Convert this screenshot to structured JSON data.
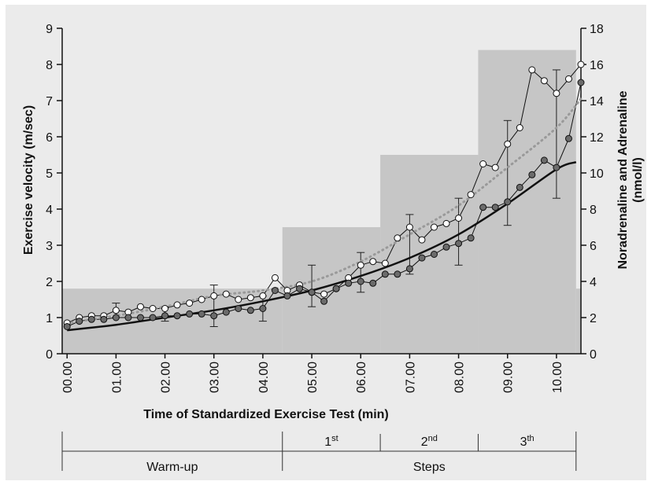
{
  "chart_data": {
    "type": "line",
    "xlabel": "Time of Standardized Exercise Test (min)",
    "ylabel": "Exercise velocity (m/sec)",
    "ylabel_right": [
      "Noradrenaline and Adrenaline",
      "(nmol/l)"
    ],
    "x_range": [
      -0.1,
      10.5
    ],
    "ylim": [
      0,
      9
    ],
    "ylim_right": [
      0,
      18
    ],
    "x_ticks": [
      0,
      1,
      2,
      3,
      4,
      5,
      6,
      7,
      8,
      9,
      10
    ],
    "x_tick_labels": [
      "00.00",
      "01.00",
      "02.00",
      "03.00",
      "04.00",
      "05.00",
      "06.00",
      "07.00",
      "08.00",
      "09.00",
      "10.00"
    ],
    "y_ticks": [
      0,
      1,
      2,
      3,
      4,
      5,
      6,
      7,
      8,
      9
    ],
    "y_tick_labels": [
      "0",
      "1",
      "2",
      "3",
      "4",
      "5",
      "6",
      "7",
      "8",
      "9"
    ],
    "y_right_ticks": [
      0,
      2,
      4,
      6,
      8,
      10,
      12,
      14,
      16,
      18
    ],
    "y_right_tick_labels": [
      "0",
      "2",
      "4",
      "6",
      "8",
      "10",
      "12",
      "14",
      "16",
      "18"
    ],
    "grid": false,
    "velocity_steps": [
      {
        "x0": -0.1,
        "x1": 4.4,
        "value": 1.8
      },
      {
        "x0": 4.4,
        "x1": 6.4,
        "value": 3.5
      },
      {
        "x0": 6.4,
        "x1": 8.4,
        "value": 5.5
      },
      {
        "x0": 8.4,
        "x1": 10.4,
        "value": 8.4
      },
      {
        "x0": 10.4,
        "x1": 10.5,
        "value": 1.8
      }
    ],
    "series": [
      {
        "marker": "open-circle",
        "axis": "right",
        "x": [
          0.0,
          0.25,
          0.5,
          0.75,
          1.0,
          1.25,
          1.5,
          1.75,
          2.0,
          2.25,
          2.5,
          2.75,
          3.0,
          3.25,
          3.5,
          3.75,
          4.0,
          4.25,
          4.5,
          4.75,
          5.0,
          5.25,
          5.5,
          5.75,
          6.0,
          6.25,
          6.5,
          6.75,
          7.0,
          7.25,
          7.5,
          7.75,
          8.0,
          8.25,
          8.5,
          8.75,
          9.0,
          9.25,
          9.5,
          9.75,
          10.0,
          10.25,
          10.5
        ],
        "y": [
          1.7,
          2.0,
          2.1,
          2.1,
          2.4,
          2.3,
          2.6,
          2.5,
          2.5,
          2.7,
          2.8,
          3.0,
          3.2,
          3.3,
          3.0,
          3.1,
          3.2,
          4.2,
          3.5,
          3.8,
          3.4,
          3.3,
          3.6,
          4.2,
          4.9,
          5.1,
          5.0,
          6.4,
          7.0,
          6.3,
          7.0,
          7.2,
          7.5,
          8.8,
          10.5,
          10.3,
          11.6,
          12.5,
          15.7,
          15.1,
          14.4,
          15.2,
          16.0
        ]
      },
      {
        "marker": "filled-circle",
        "axis": "right",
        "x": [
          0.0,
          0.25,
          0.5,
          0.75,
          1.0,
          1.25,
          1.5,
          1.75,
          2.0,
          2.25,
          2.5,
          2.75,
          3.0,
          3.25,
          3.5,
          3.75,
          4.0,
          4.25,
          4.5,
          4.75,
          5.0,
          5.25,
          5.5,
          5.75,
          6.0,
          6.25,
          6.5,
          6.75,
          7.0,
          7.25,
          7.5,
          7.75,
          8.0,
          8.25,
          8.5,
          8.75,
          9.0,
          9.25,
          9.5,
          9.75,
          10.0,
          10.25,
          10.5
        ],
        "y": [
          1.5,
          1.8,
          1.9,
          1.9,
          2.0,
          2.0,
          2.0,
          2.0,
          2.1,
          2.1,
          2.2,
          2.2,
          2.1,
          2.3,
          2.5,
          2.4,
          2.5,
          3.5,
          3.2,
          3.6,
          3.4,
          2.9,
          3.6,
          3.9,
          4.0,
          3.9,
          4.4,
          4.4,
          4.7,
          5.3,
          5.5,
          5.9,
          6.1,
          6.4,
          8.1,
          8.1,
          8.4,
          9.2,
          9.9,
          10.7,
          10.3,
          11.9,
          15.0
        ]
      },
      {
        "line": "dotted-gray",
        "axis": "right",
        "x": [
          0.0,
          1.0,
          2.0,
          3.0,
          4.0,
          5.0,
          6.0,
          7.0,
          8.0,
          9.0,
          10.0,
          10.5
        ],
        "y": [
          1.7,
          2.1,
          2.6,
          3.2,
          3.5,
          4.0,
          5.1,
          6.6,
          8.2,
          10.3,
          12.5,
          14.1
        ]
      },
      {
        "line": "solid-black",
        "axis": "right",
        "x": [
          0.0,
          1.0,
          2.0,
          3.0,
          4.0,
          5.0,
          6.0,
          7.0,
          8.0,
          9.0,
          10.0,
          10.4
        ],
        "y": [
          1.3,
          1.6,
          2.0,
          2.4,
          2.9,
          3.5,
          4.3,
          5.3,
          6.6,
          8.3,
          10.2,
          10.6
        ]
      }
    ],
    "error_bars": [
      {
        "x": 1.0,
        "y_low": 2.0,
        "y_high": 2.8
      },
      {
        "x": 2.0,
        "y_low": 1.8,
        "y_high": 2.6
      },
      {
        "x": 3.0,
        "y_low": 1.5,
        "y_high": 3.8
      },
      {
        "x": 4.0,
        "y_low": 1.8,
        "y_high": 3.2
      },
      {
        "x": 5.0,
        "y_low": 2.6,
        "y_high": 4.9
      },
      {
        "x": 6.0,
        "y_low": 3.4,
        "y_high": 5.6
      },
      {
        "x": 7.0,
        "y_low": 4.4,
        "y_high": 7.7
      },
      {
        "x": 8.0,
        "y_low": 4.9,
        "y_high": 8.6
      },
      {
        "x": 9.0,
        "y_low": 7.1,
        "y_high": 12.9
      },
      {
        "x": 10.0,
        "y_low": 8.6,
        "y_high": 15.7
      }
    ]
  },
  "phases": {
    "boundaries": [
      -0.1,
      4.4,
      6.4,
      8.4,
      10.4
    ],
    "labels": [
      {
        "main": "1",
        "sup": "st",
        "x_from": 4.4,
        "x_to": 6.4
      },
      {
        "main": "2",
        "sup": "nd",
        "x_from": 6.4,
        "x_to": 8.4
      },
      {
        "main": "3",
        "sup": "th",
        "x_from": 8.4,
        "x_to": 10.4
      }
    ],
    "warmup": {
      "label": "Warm-up",
      "x_from": -0.1,
      "x_to": 4.4
    },
    "steps": {
      "label": "Steps",
      "x_from": 4.4,
      "x_to": 10.4
    }
  },
  "colors": {
    "background": "#ebebeb",
    "step_fill": "#c6c6c6",
    "filled_marker": "#6b6b6b",
    "open_marker": "#ffffff",
    "dotted_line": "#999999",
    "solid_line": "#111111"
  }
}
